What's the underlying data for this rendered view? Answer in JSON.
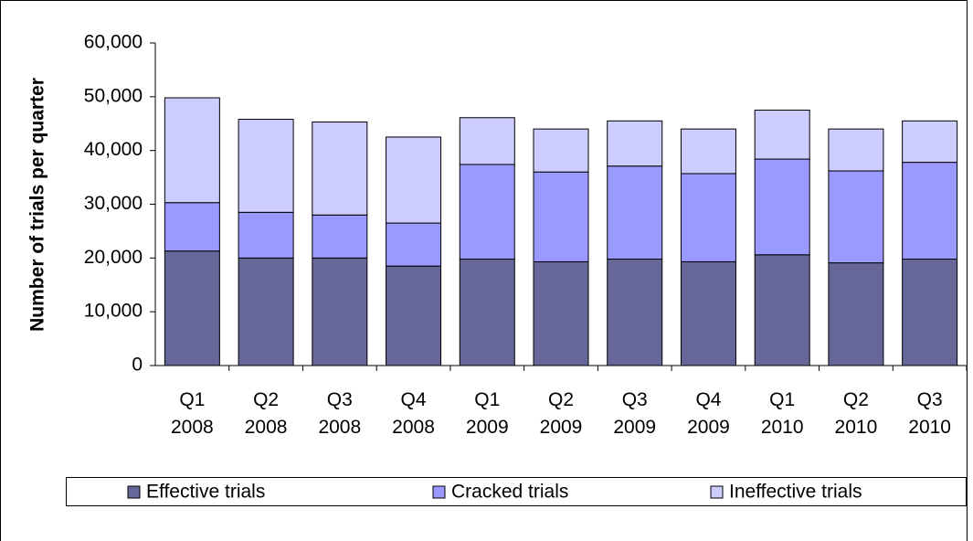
{
  "chart_data": {
    "type": "stacked-bar",
    "y_label": "Number of trials per quarter",
    "categories": [
      [
        "Q1",
        "2008"
      ],
      [
        "Q2",
        "2008"
      ],
      [
        "Q3",
        "2008"
      ],
      [
        "Q4",
        "2008"
      ],
      [
        "Q1",
        "2009"
      ],
      [
        "Q2",
        "2009"
      ],
      [
        "Q3",
        "2009"
      ],
      [
        "Q4",
        "2009"
      ],
      [
        "Q1",
        "2010"
      ],
      [
        "Q2",
        "2010"
      ],
      [
        "Q3",
        "2010"
      ]
    ],
    "series": [
      {
        "name": "Effective trials",
        "color": "#666699",
        "values": [
          21300,
          20000,
          20000,
          18500,
          19800,
          19300,
          19800,
          19300,
          20600,
          19100,
          19800
        ]
      },
      {
        "name": "Cracked trials",
        "color": "#9999ff",
        "values": [
          9000,
          8500,
          8000,
          8000,
          17600,
          16700,
          17300,
          16400,
          17800,
          17100,
          18000
        ]
      },
      {
        "name": "Ineffective trials",
        "color": "#ccccff",
        "values": [
          19500,
          17300,
          17300,
          16000,
          8700,
          8000,
          8400,
          8300,
          9100,
          7800,
          7700
        ]
      }
    ],
    "ylim": [
      0,
      60000
    ],
    "yticks": [
      0,
      {
        "value": 10000,
        "label": "10,000"
      },
      {
        "value": 20000,
        "label": "20,000"
      },
      {
        "value": 30000,
        "label": "30,000"
      },
      {
        "value": 40000,
        "label": "40,000"
      },
      {
        "value": 50000,
        "label": "50,000"
      },
      {
        "value": 60000,
        "label": "60,000"
      }
    ],
    "legend": "bottom"
  }
}
